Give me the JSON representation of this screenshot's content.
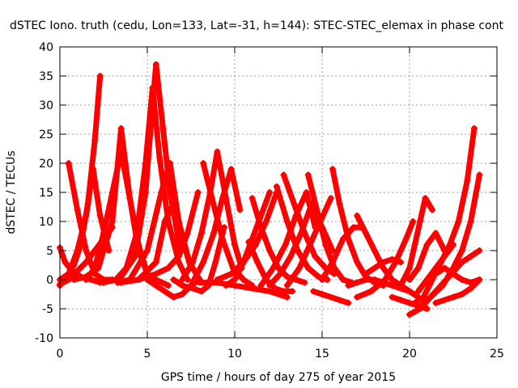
{
  "chart_data": {
    "type": "line",
    "title": "dSTEC Iono. truth (cedu, Lon=133, Lat=-31, h=144): STEC-STEC_elemax in phase cont",
    "xlabel": "GPS time / hours of day 275 of year 2015",
    "ylabel": "dSTEC  / TECUs",
    "xlim": [
      0,
      25
    ],
    "ylim": [
      -10,
      40
    ],
    "x_ticks": [
      0,
      5,
      10,
      15,
      20,
      25
    ],
    "x_tick_labels": [
      "0",
      "5",
      "10",
      "15",
      "20",
      "25"
    ],
    "y_ticks": [
      -10,
      -5,
      0,
      5,
      10,
      15,
      20,
      25,
      30,
      35,
      40
    ],
    "y_tick_labels": [
      "-10",
      "-5",
      "0",
      "5",
      "10",
      "15",
      "20",
      "25",
      "30",
      "35",
      "40"
    ],
    "grid": true,
    "color": "#ff0000",
    "marker": "plus",
    "series": [
      {
        "x": [
          0.5,
          1.0,
          1.5,
          2.0,
          2.5,
          3.0
        ],
        "y": [
          20,
          12,
          5,
          1,
          0,
          0
        ]
      },
      {
        "x": [
          0.0,
          0.4,
          0.8,
          1.2,
          1.6,
          2.0,
          2.3
        ],
        "y": [
          -1,
          0.5,
          2.5,
          6,
          13,
          24,
          35
        ]
      },
      {
        "x": [
          0.0,
          0.3,
          0.7,
          1.2,
          1.8,
          2.3
        ],
        "y": [
          5.5,
          3,
          1.5,
          0.5,
          0,
          -0.5
        ]
      },
      {
        "x": [
          0.0,
          0.5,
          1.0,
          1.5,
          1.9,
          2.3,
          2.8
        ],
        "y": [
          0,
          1,
          5,
          11,
          19,
          11,
          5
        ]
      },
      {
        "x": [
          0.0,
          0.5,
          1.0,
          1.5,
          2.0,
          2.5,
          3.0
        ],
        "y": [
          -0.8,
          0,
          1.5,
          3,
          5,
          7,
          9
        ]
      },
      {
        "x": [
          0.8,
          1.5,
          2.2,
          3.0,
          3.5,
          4.0,
          4.5,
          5.0,
          5.5,
          6.2
        ],
        "y": [
          0,
          0.5,
          2,
          10,
          26,
          14,
          5,
          1,
          0,
          -1
        ]
      },
      {
        "x": [
          1.5,
          2.0,
          2.5,
          3.0,
          3.5,
          4.0,
          4.5,
          5.0
        ],
        "y": [
          0,
          2,
          8,
          15,
          22,
          14,
          6,
          1
        ]
      },
      {
        "x": [
          2.5,
          3.2,
          3.8,
          4.4,
          4.9,
          5.3,
          5.7,
          6.2,
          6.8,
          7.3
        ],
        "y": [
          -0.5,
          0,
          2,
          8,
          20,
          33,
          21,
          10,
          3,
          0
        ]
      },
      {
        "x": [
          3.5,
          4.3,
          4.9,
          5.3,
          5.5,
          5.9,
          6.3,
          6.9
        ],
        "y": [
          0.5,
          4,
          15,
          30,
          37,
          26,
          15,
          5
        ]
      },
      {
        "x": [
          3.5,
          4.5,
          5.5,
          6.0,
          6.5,
          7.0,
          7.5
        ],
        "y": [
          -0.5,
          0,
          3,
          10,
          13,
          7,
          2
        ]
      },
      {
        "x": [
          3.3,
          4.0,
          5.0,
          5.8,
          6.3,
          6.8,
          7.4,
          8.0
        ],
        "y": [
          -0.5,
          0,
          5,
          15,
          20,
          10,
          3,
          0
        ]
      },
      {
        "x": [
          4.5,
          5.5,
          6.2,
          6.8,
          7.3,
          7.9
        ],
        "y": [
          0,
          1,
          2,
          4,
          8,
          15
        ]
      },
      {
        "x": [
          5.0,
          5.5,
          6.0,
          6.5,
          7.0,
          7.5,
          8.0
        ],
        "y": [
          0,
          -1,
          -2,
          -3,
          -2.5,
          -1,
          0
        ]
      },
      {
        "x": [
          6.5,
          7.0,
          7.6,
          8.1,
          8.5,
          8.9,
          9.4
        ],
        "y": [
          0,
          -1,
          -1.5,
          -2,
          -1,
          3,
          9
        ]
      },
      {
        "x": [
          7.0,
          7.6,
          8.1,
          8.6,
          9.0,
          9.5,
          10.0,
          10.4
        ],
        "y": [
          0,
          3,
          8,
          15,
          22,
          14,
          6,
          2
        ]
      },
      {
        "x": [
          8.2,
          8.7,
          9.3,
          9.9,
          10.5,
          11.0
        ],
        "y": [
          20,
          14,
          7,
          2,
          0,
          -1
        ]
      },
      {
        "x": [
          7.5,
          8.2,
          8.8,
          9.3,
          9.8,
          10.3
        ],
        "y": [
          -1,
          3,
          8,
          14,
          19,
          12
        ]
      },
      {
        "x": [
          8.0,
          9.0,
          10.0,
          11.0,
          12.0,
          13.0
        ],
        "y": [
          -0.5,
          -0.5,
          -1,
          -1.5,
          -2,
          -3
        ]
      },
      {
        "x": [
          9.0,
          9.8,
          10.5,
          11.2,
          11.8,
          12.4
        ],
        "y": [
          0,
          1,
          3,
          6,
          10,
          15
        ]
      },
      {
        "x": [
          9.5,
          10.0,
          10.5,
          11.0,
          11.5,
          12.0
        ],
        "y": [
          -1,
          0,
          3,
          7,
          11,
          15
        ]
      },
      {
        "x": [
          10.8,
          11.3,
          11.8,
          12.3,
          12.8,
          13.3
        ],
        "y": [
          6.5,
          3,
          0,
          -1.5,
          -2,
          -2
        ]
      },
      {
        "x": [
          11.0,
          11.5,
          12.0,
          12.5,
          13.0,
          13.5,
          14.0
        ],
        "y": [
          14,
          9,
          5,
          2,
          0.5,
          0,
          -0.5
        ]
      },
      {
        "x": [
          11.5,
          12.2,
          12.9,
          13.5,
          14.1,
          14.6
        ],
        "y": [
          -1,
          2,
          6,
          11,
          15,
          9
        ]
      },
      {
        "x": [
          12.4,
          13.0,
          13.6,
          14.2,
          14.8,
          15.3
        ],
        "y": [
          16,
          10,
          5,
          2,
          0.5,
          0
        ]
      },
      {
        "x": [
          12.0,
          12.6,
          13.2,
          13.8,
          14.4,
          15.0,
          15.6
        ],
        "y": [
          -1,
          1,
          4,
          8,
          13,
          9,
          5
        ]
      },
      {
        "x": [
          12.8,
          13.4,
          14.0,
          14.6,
          15.2,
          15.7
        ],
        "y": [
          18,
          13,
          8,
          4,
          2,
          1
        ]
      },
      {
        "x": [
          14.2,
          14.7,
          15.2,
          15.7,
          16.2,
          16.7
        ],
        "y": [
          18,
          12,
          6,
          2,
          0,
          -0.5
        ]
      },
      {
        "x": [
          13.0,
          13.7,
          14.3,
          14.9,
          15.5
        ],
        "y": [
          -1,
          2,
          6,
          10,
          14
        ]
      },
      {
        "x": [
          15.6,
          16.0,
          16.5,
          17.0,
          17.5,
          18.0,
          18.5
        ],
        "y": [
          19,
          13,
          7,
          3,
          0.5,
          -0.5,
          -1
        ]
      },
      {
        "x": [
          14.5,
          15.0,
          15.5,
          16.0,
          16.5
        ],
        "y": [
          -2,
          -2.5,
          -3,
          -3.5,
          -4
        ]
      },
      {
        "x": [
          15.0,
          15.6,
          16.2,
          16.8,
          17.2
        ],
        "y": [
          0,
          3,
          7,
          9,
          9
        ]
      },
      {
        "x": [
          17.0,
          17.5,
          18.0,
          18.5,
          19.0,
          19.5,
          20.0,
          20.5
        ],
        "y": [
          11,
          8,
          5,
          2,
          0,
          -1,
          -2,
          -3
        ]
      },
      {
        "x": [
          16.5,
          17.0,
          17.5,
          18.0,
          18.5,
          19.0,
          19.5,
          20.0
        ],
        "y": [
          -1,
          -0.5,
          0,
          0,
          -0.5,
          -1,
          -1.5,
          -2
        ]
      },
      {
        "x": [
          17.0,
          17.8,
          18.6,
          19.2,
          19.8,
          20.2
        ],
        "y": [
          -3,
          -2,
          0,
          3,
          7,
          10
        ]
      },
      {
        "x": [
          17.5,
          18.0,
          18.5,
          19.0,
          19.5
        ],
        "y": [
          1,
          2,
          3,
          3.5,
          3
        ]
      },
      {
        "x": [
          19.0,
          19.5,
          20.0,
          20.5,
          21.0
        ],
        "y": [
          -3,
          -3.5,
          -4,
          -4.5,
          -5
        ]
      },
      {
        "x": [
          19.5,
          20.0,
          20.3,
          20.6,
          20.9,
          21.3
        ],
        "y": [
          -1,
          2,
          6,
          10,
          14,
          12
        ]
      },
      {
        "x": [
          20.0,
          20.5,
          21.0,
          21.5,
          22.0
        ],
        "y": [
          0,
          2,
          6,
          8,
          5
        ]
      },
      {
        "x": [
          20.0,
          20.6,
          21.2,
          21.8,
          22.4,
          23.0,
          23.5,
          24.0
        ],
        "y": [
          -6,
          -5,
          -3,
          -1,
          1,
          3,
          4,
          5
        ]
      },
      {
        "x": [
          20.3,
          20.8,
          21.3,
          21.8,
          22.3,
          22.8,
          23.3,
          23.7
        ],
        "y": [
          -4,
          -3,
          0,
          3,
          6,
          10,
          17,
          26
        ]
      },
      {
        "x": [
          20.5,
          21.2,
          21.9,
          22.5,
          23.0,
          23.5,
          24.0
        ],
        "y": [
          -5,
          -3,
          -1,
          2,
          5,
          10,
          18
        ]
      },
      {
        "x": [
          21.5,
          22.0,
          22.5,
          23.0,
          23.5,
          24.0
        ],
        "y": [
          -4,
          -3.5,
          -3,
          -2.5,
          -1.5,
          0
        ]
      },
      {
        "x": [
          20.5,
          21.0,
          21.5,
          22.0,
          22.5
        ],
        "y": [
          -2,
          0,
          2,
          4,
          6
        ]
      },
      {
        "x": [
          21.0,
          21.5,
          22.0,
          22.5,
          23.0,
          23.5,
          24.0
        ],
        "y": [
          0,
          1,
          2,
          1,
          0,
          -0.5,
          0
        ]
      }
    ]
  }
}
